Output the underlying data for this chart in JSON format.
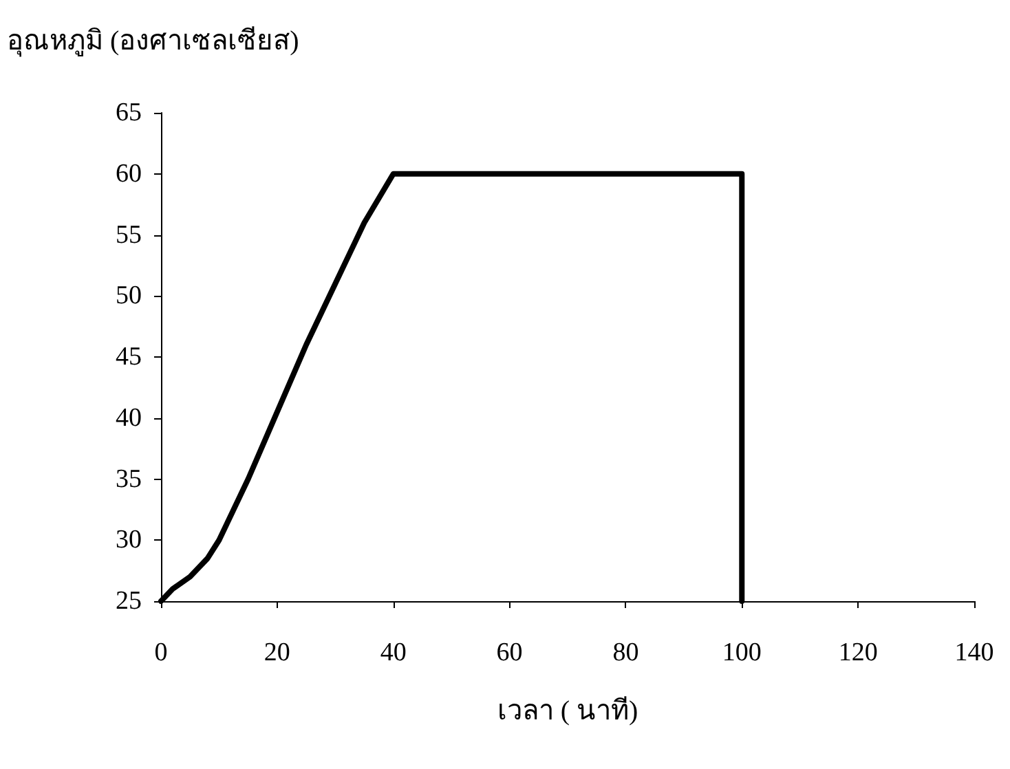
{
  "chart_data": {
    "type": "line",
    "xlabel": "เวลา ( นาที)",
    "ylabel": "อุณหภูมิ (องศาเซลเซียส)",
    "series": [
      {
        "color": "#000000",
        "x": [
          0,
          2,
          5,
          8,
          10,
          15,
          20,
          25,
          30,
          35,
          40,
          100,
          100
        ],
        "values": [
          25,
          26,
          27,
          28.5,
          30,
          35,
          40.5,
          46,
          51,
          56,
          60,
          60,
          25
        ]
      }
    ],
    "xlim": [
      0,
      140
    ],
    "xticks": [
      0,
      20,
      40,
      60,
      80,
      100,
      120,
      140
    ],
    "ylim": [
      25,
      65
    ],
    "yticks": [
      25,
      30,
      35,
      40,
      45,
      50,
      55,
      60,
      65
    ],
    "marker": "none",
    "line_style": "solid"
  }
}
